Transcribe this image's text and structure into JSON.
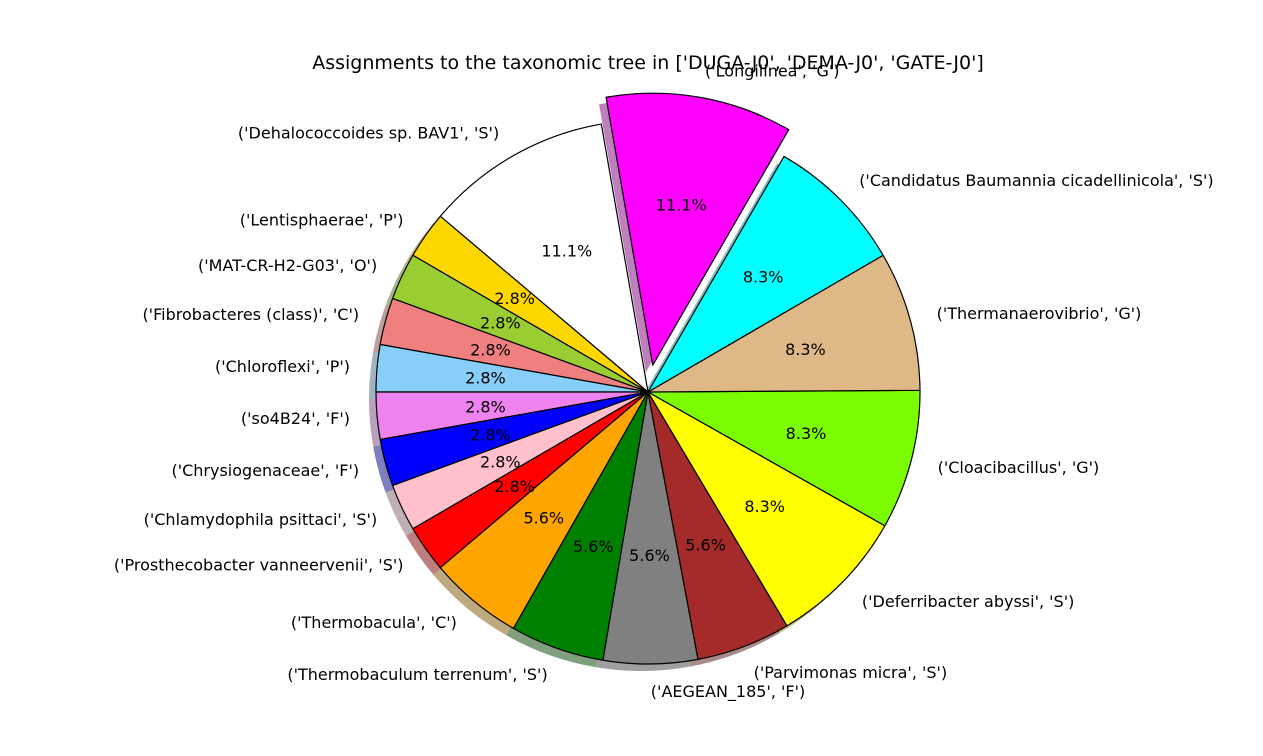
{
  "chart_data": {
    "type": "pie",
    "title": "Assignments to the taxonomic tree in ['DUGA-J0', 'DEMA-J0', 'GATE-J0']",
    "slices": [
      {
        "label": "('Longilinea', 'G')",
        "value": 11.1,
        "pct_label": "11.1%",
        "color": "#ff00ff",
        "exploded": true
      },
      {
        "label": "('Dehalococcoides sp. BAV1', 'S')",
        "value": 11.1,
        "pct_label": "11.1%",
        "color": "#ffffff",
        "exploded": false
      },
      {
        "label": "('Lentisphaerae', 'P')",
        "value": 2.8,
        "pct_label": "2.8%",
        "color": "#ffd700",
        "exploded": false
      },
      {
        "label": "('MAT-CR-H2-G03', 'O')",
        "value": 2.8,
        "pct_label": "2.8%",
        "color": "#9acd32",
        "exploded": false
      },
      {
        "label": "('Fibrobacteres (class)', 'C')",
        "value": 2.8,
        "pct_label": "2.8%",
        "color": "#f08080",
        "exploded": false
      },
      {
        "label": "('Chloroflexi', 'P')",
        "value": 2.8,
        "pct_label": "2.8%",
        "color": "#87cefa",
        "exploded": false
      },
      {
        "label": "('so4B24', 'F')",
        "value": 2.8,
        "pct_label": "2.8%",
        "color": "#ee82ee",
        "exploded": false
      },
      {
        "label": "('Chrysiogenaceae', 'F')",
        "value": 2.8,
        "pct_label": "2.8%",
        "color": "#0000ff",
        "exploded": false
      },
      {
        "label": "('Chlamydophila psittaci', 'S')",
        "value": 2.8,
        "pct_label": "2.8%",
        "color": "#ffc0cb",
        "exploded": false
      },
      {
        "label": "('Prosthecobacter vanneervenii', 'S')",
        "value": 2.8,
        "pct_label": "2.8%",
        "color": "#ff0000",
        "exploded": false
      },
      {
        "label": "('Thermobacula', 'C')",
        "value": 5.6,
        "pct_label": "5.6%",
        "color": "#ffa500",
        "exploded": false
      },
      {
        "label": "('Thermobaculum terrenum', 'S')",
        "value": 5.6,
        "pct_label": "5.6%",
        "color": "#008000",
        "exploded": false
      },
      {
        "label": "('AEGEAN_185', 'F')",
        "value": 5.6,
        "pct_label": "5.6%",
        "color": "#808080",
        "exploded": false
      },
      {
        "label": "('Parvimonas micra', 'S')",
        "value": 5.6,
        "pct_label": "5.6%",
        "color": "#a52a2a",
        "exploded": false
      },
      {
        "label": "('Deferribacter abyssi', 'S')",
        "value": 8.3,
        "pct_label": "8.3%",
        "color": "#ffff00",
        "exploded": false
      },
      {
        "label": "('Cloacibacillus', 'G')",
        "value": 8.3,
        "pct_label": "8.3%",
        "color": "#7cfc00",
        "exploded": false
      },
      {
        "label": "('Thermanaerovibrio', 'G')",
        "value": 8.3,
        "pct_label": "8.3%",
        "color": "#deb887",
        "exploded": false
      },
      {
        "label": "('Candidatus Baumannia cicadellinicola', 'S')",
        "value": 8.3,
        "pct_label": "8.3%",
        "color": "#00ffff",
        "exploded": false
      }
    ],
    "start_angle_deg": 60,
    "direction": "counterclockwise",
    "shadow": true,
    "legend": "none"
  }
}
